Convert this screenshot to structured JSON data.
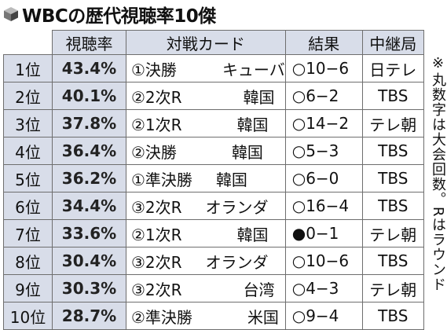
{
  "title": "WBCの歴代視聴率10傑",
  "headers": {
    "rating": "視聴率",
    "card": "対戦カード",
    "result": "結果",
    "broadcaster": "中継局"
  },
  "rows": [
    {
      "rank": "1位",
      "rating": "43.4%",
      "round": "①決勝",
      "opponent": "キューバ",
      "result": "○10−6",
      "broadcaster": "日テレ"
    },
    {
      "rank": "2位",
      "rating": "40.1%",
      "round": "②2次R",
      "opponent": "韓国",
      "result": "○6−2",
      "broadcaster": "TBS"
    },
    {
      "rank": "3位",
      "rating": "37.8%",
      "round": "②1次R",
      "opponent": "韓国",
      "result": "○14−2",
      "broadcaster": "テレ朝"
    },
    {
      "rank": "4位",
      "rating": "36.4%",
      "round": "②決勝",
      "opponent": "韓国",
      "result": "○5−3",
      "broadcaster": "TBS"
    },
    {
      "rank": "5位",
      "rating": "36.2%",
      "round": "①準決勝",
      "opponent": "韓国",
      "result": "○6−0",
      "broadcaster": "TBS"
    },
    {
      "rank": "6位",
      "rating": "34.4%",
      "round": "③2次R",
      "opponent": "オランダ",
      "result": "○16−4",
      "broadcaster": "TBS"
    },
    {
      "rank": "7位",
      "rating": "33.6%",
      "round": "②1次R",
      "opponent": "韓国",
      "result": "●0−1",
      "broadcaster": "テレ朝"
    },
    {
      "rank": "8位",
      "rating": "30.4%",
      "round": "③2次R",
      "opponent": "オランダ",
      "result": "○10−6",
      "broadcaster": "TBS"
    },
    {
      "rank": "9位",
      "rating": "30.3%",
      "round": "③2次R",
      "opponent": "台湾",
      "result": "○4−3",
      "broadcaster": "テレ朝"
    },
    {
      "rank": "10位",
      "rating": "28.7%",
      "round": "②準決勝",
      "opponent": "米国",
      "result": "○9−4",
      "broadcaster": "TBS"
    }
  ],
  "note": "※丸数字は大会回数。Rはラウンド",
  "icon": "cube-icon"
}
